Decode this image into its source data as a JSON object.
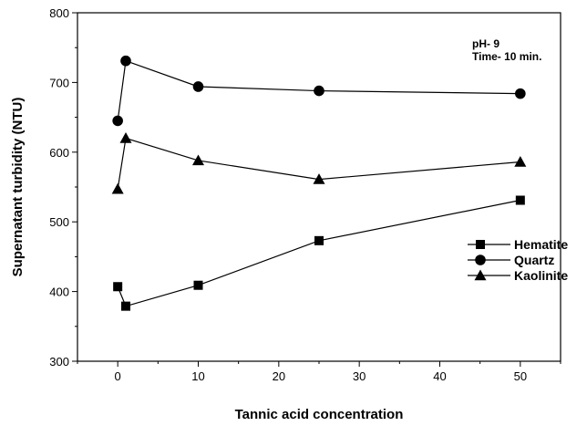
{
  "chart_data": {
    "type": "line",
    "xlabel": "Tannic acid concentration",
    "ylabel": "Supernatant turbidity (NTU)",
    "xlim": [
      -5,
      55
    ],
    "ylim": [
      300,
      800
    ],
    "xticks": [
      0,
      10,
      20,
      30,
      40,
      50
    ],
    "yticks": [
      300,
      400,
      500,
      600,
      700,
      800
    ],
    "tick_labels": {
      "x": [
        "0",
        "10",
        "20",
        "30",
        "40",
        "50"
      ],
      "y": [
        "300",
        "400",
        "500",
        "600",
        "700",
        "800"
      ]
    },
    "annotations": [
      "pH- 9",
      "Time- 10 min."
    ],
    "legend_position": "right",
    "grid": false,
    "series": [
      {
        "name": "Hematite",
        "marker": "square",
        "color": "#000000",
        "x": [
          0,
          1,
          10,
          25,
          50
        ],
        "y": [
          407,
          379,
          409,
          473,
          531
        ]
      },
      {
        "name": "Quartz",
        "marker": "circle",
        "color": "#000000",
        "x": [
          0,
          1,
          10,
          25,
          50
        ],
        "y": [
          645,
          731,
          694,
          688,
          684
        ]
      },
      {
        "name": "Kaolinite",
        "marker": "triangle",
        "color": "#000000",
        "x": [
          0,
          1,
          10,
          25,
          50
        ],
        "y": [
          547,
          620,
          588,
          561,
          586
        ]
      }
    ]
  }
}
